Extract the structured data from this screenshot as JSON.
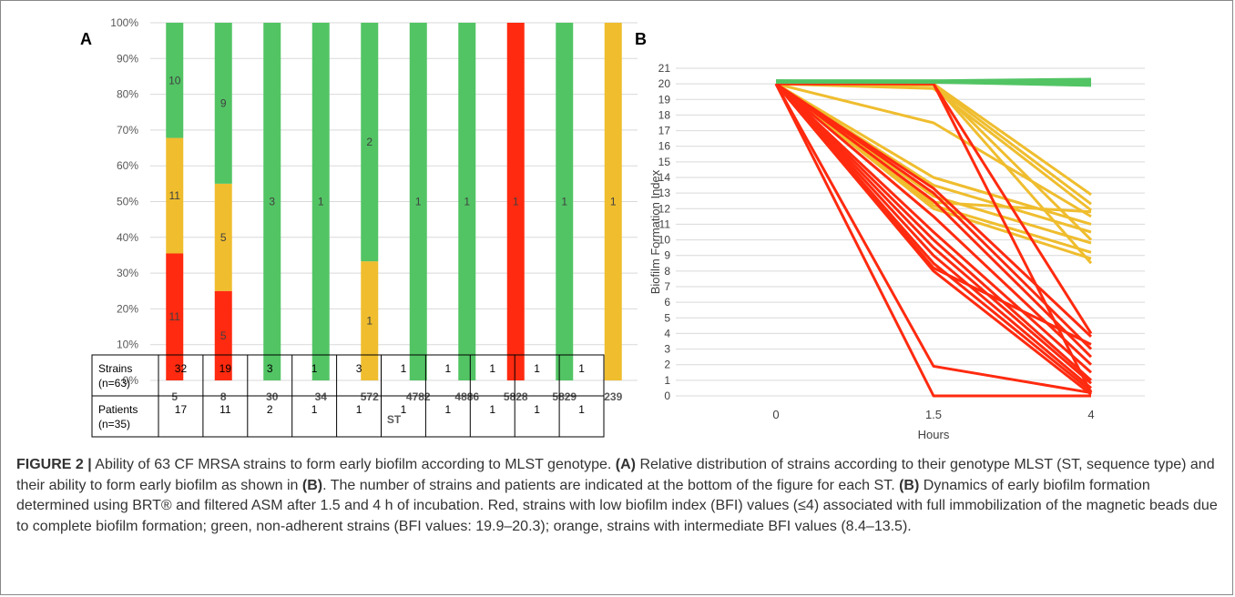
{
  "panel_a_label": "A",
  "panel_b_label": "B",
  "colors": {
    "red": "#ff2a0f",
    "orange": "#efbd2e",
    "green": "#52c464",
    "grid": "#d9d9d9",
    "axis": "#7f7f7f"
  },
  "chart_data": [
    {
      "type": "bar",
      "stacked": true,
      "xlabel": "ST",
      "ylabel": "",
      "ylim": [
        0,
        100
      ],
      "ytick_labels": [
        "0%",
        "10%",
        "20%",
        "30%",
        "40%",
        "50%",
        "60%",
        "70%",
        "80%",
        "90%",
        "100%"
      ],
      "categories": [
        "5",
        "8",
        "30",
        "34",
        "572",
        "4782",
        "4886",
        "5828",
        "5829",
        "239"
      ],
      "series": [
        {
          "color": "red",
          "values": [
            35.5,
            25.0,
            0,
            0,
            0,
            0,
            0,
            100,
            0,
            0
          ],
          "labels": [
            "11",
            "5",
            "",
            "",
            "",
            "",
            "",
            "1",
            "",
            ""
          ]
        },
        {
          "color": "orange",
          "values": [
            32.3,
            30.0,
            0,
            0,
            33.3,
            0,
            0,
            0,
            0,
            100
          ],
          "labels": [
            "11",
            "5",
            "",
            "",
            "1",
            "",
            "",
            "",
            "",
            "1"
          ]
        },
        {
          "color": "green",
          "values": [
            32.2,
            45.0,
            100,
            100,
            66.7,
            100,
            100,
            0,
            100,
            0
          ],
          "labels": [
            "10",
            "9",
            "3",
            "1",
            "2",
            "1",
            "1",
            "",
            "1",
            ""
          ]
        }
      ],
      "grid": true,
      "table": {
        "rows": [
          {
            "header": [
              "Strains",
              "(n=63)"
            ],
            "values": [
              "32",
              "19",
              "3",
              "1",
              "3",
              "1",
              "1",
              "1",
              "1",
              "1"
            ]
          },
          {
            "header": [
              "Patients",
              "(n=35)"
            ],
            "values": [
              "17",
              "11",
              "2",
              "1",
              "1",
              "1",
              "1",
              "1",
              "1",
              "1"
            ]
          }
        ]
      }
    },
    {
      "type": "line",
      "xlabel": "Hours",
      "ylabel": "Biofilm Formation Index",
      "x_categories": [
        "0",
        "1.5",
        "4"
      ],
      "ylim": [
        0,
        21
      ],
      "ytick_labels": [
        "0",
        "1",
        "2",
        "3",
        "4",
        "5",
        "6",
        "7",
        "8",
        "9",
        "10",
        "11",
        "12",
        "13",
        "14",
        "15",
        "16",
        "17",
        "18",
        "19",
        "20",
        "21"
      ],
      "grid": true,
      "series": [
        {
          "color": "green",
          "values": [
            20.2,
            20.2,
            20.3
          ]
        },
        {
          "color": "green",
          "values": [
            20.1,
            20.1,
            19.9
          ]
        },
        {
          "color": "green",
          "values": [
            20.2,
            20.1,
            20.1
          ]
        },
        {
          "color": "green",
          "values": [
            20.2,
            20.2,
            20.0
          ]
        },
        {
          "color": "green",
          "values": [
            20.1,
            20.1,
            20.2
          ]
        },
        {
          "color": "orange",
          "values": [
            20,
            20,
            12.9
          ]
        },
        {
          "color": "orange",
          "values": [
            20,
            19.9,
            12.3
          ]
        },
        {
          "color": "orange",
          "values": [
            20,
            19.7,
            11.9
          ]
        },
        {
          "color": "orange",
          "values": [
            20,
            17.5,
            11.5
          ]
        },
        {
          "color": "orange",
          "values": [
            20,
            14,
            11
          ]
        },
        {
          "color": "orange",
          "values": [
            20,
            13.5,
            10.5
          ]
        },
        {
          "color": "orange",
          "values": [
            20,
            12.8,
            9.8
          ]
        },
        {
          "color": "orange",
          "values": [
            20,
            12.4,
            11.8
          ]
        },
        {
          "color": "orange",
          "values": [
            20,
            12.2,
            9.2
          ]
        },
        {
          "color": "orange",
          "values": [
            20,
            12,
            8.8
          ]
        },
        {
          "color": "orange",
          "values": [
            20,
            20,
            8.5
          ]
        },
        {
          "color": "orange",
          "values": [
            20,
            20,
            10
          ]
        },
        {
          "color": "red",
          "values": [
            20,
            20,
            4
          ]
        },
        {
          "color": "red",
          "values": [
            20,
            20,
            0.2
          ]
        },
        {
          "color": "red",
          "values": [
            20,
            13.3,
            3.8
          ]
        },
        {
          "color": "red",
          "values": [
            20,
            13.0,
            3.0
          ]
        },
        {
          "color": "red",
          "values": [
            20,
            12.5,
            2.5
          ]
        },
        {
          "color": "red",
          "values": [
            20,
            11.5,
            2.0
          ]
        },
        {
          "color": "red",
          "values": [
            20,
            10.5,
            1.5
          ]
        },
        {
          "color": "red",
          "values": [
            20,
            10.0,
            1.0
          ]
        },
        {
          "color": "red",
          "values": [
            20,
            9.5,
            0.8
          ]
        },
        {
          "color": "red",
          "values": [
            20,
            9.0,
            0.5
          ]
        },
        {
          "color": "red",
          "values": [
            20,
            8.5,
            0.3
          ]
        },
        {
          "color": "red",
          "values": [
            20,
            8.2,
            3.3
          ]
        },
        {
          "color": "red",
          "values": [
            20,
            8.0,
            0.1
          ]
        },
        {
          "color": "red",
          "values": [
            20,
            1.9,
            0.2
          ]
        },
        {
          "color": "red",
          "values": [
            20,
            0,
            0
          ]
        }
      ]
    }
  ],
  "caption": {
    "figure_label": "FIGURE 2 |",
    "intro": " Ability of 63 CF MRSA strains to form early biofilm according to MLST genotype. ",
    "a_ref": "(A)",
    "a_text": " Relative distribution of strains according to their genotype MLST (ST, sequence type) and their ability to form early biofilm as shown in ",
    "b_ref_1": "(B)",
    "a_text_2": ". The number of strains and patients are indicated at the bottom of the figure for each ST. ",
    "b_ref_2": "(B)",
    "b_text": " Dynamics of early biofilm formation determined using BRT® and filtered ASM after 1.5 and 4 h of incubation. Red, strains with low biofilm index (BFI) values (≤4) associated with full immobilization of the magnetic beads due to complete biofilm formation; green, non-adherent strains (BFI values: 19.9–20.3); orange, strains with intermediate BFI values (8.4–13.5)."
  }
}
